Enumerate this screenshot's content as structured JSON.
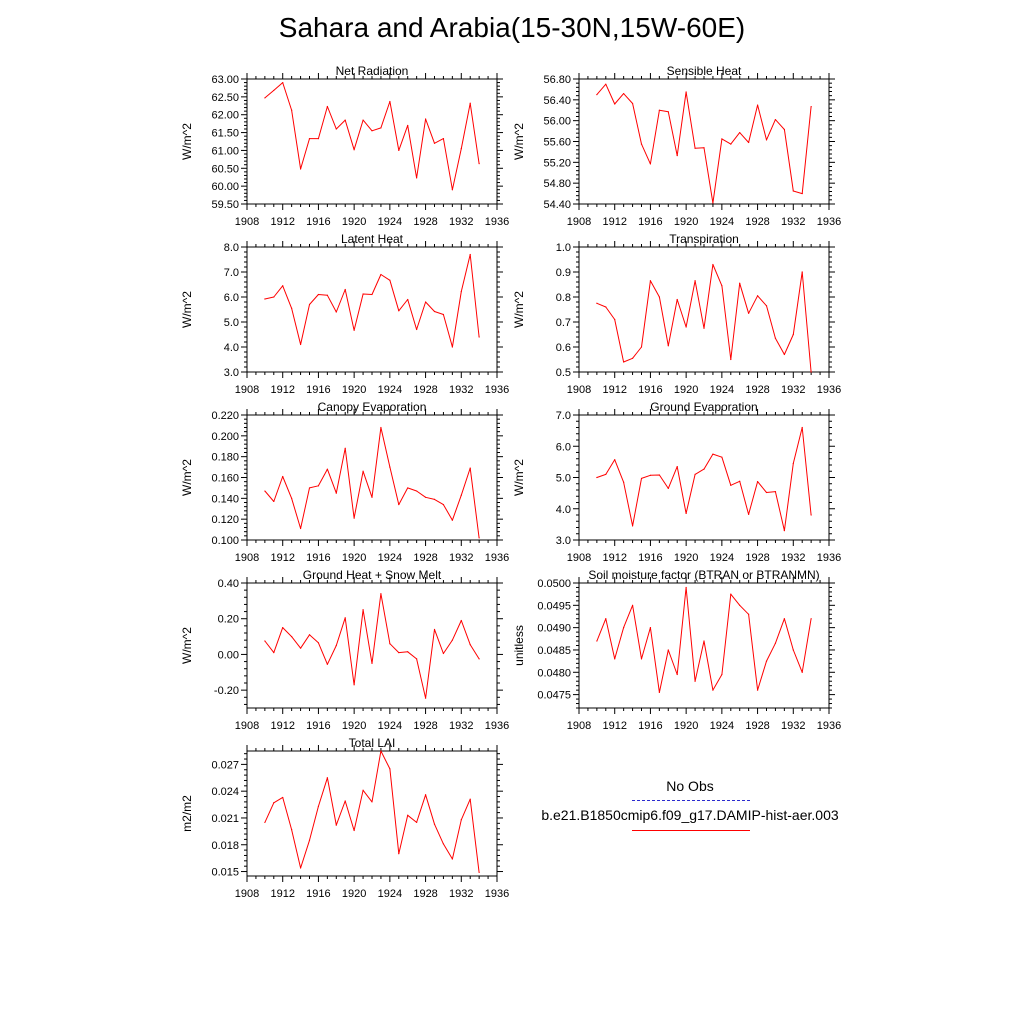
{
  "title": "Sahara and Arabia(15-30N,15W-60E)",
  "legend": {
    "obs_label": "No Obs",
    "obs_color": "#2b2bcf",
    "model_label": "b.e21.B1850cmip6.f09_g17.DAMIP-hist-aer.003",
    "model_color": "#ff0000"
  },
  "chart_data": [
    {
      "type": "line",
      "title": "Net Radiation",
      "ylabel": "W/m^2",
      "xlim": [
        1908,
        1936
      ],
      "ylim": [
        59.5,
        63.0
      ],
      "yticks": [
        "59.50",
        "60.00",
        "60.50",
        "61.00",
        "61.50",
        "62.00",
        "62.50",
        "63.00"
      ],
      "xticks": [
        "1908",
        "1912",
        "1916",
        "1920",
        "1924",
        "1928",
        "1932",
        "1936"
      ],
      "x": [
        1910,
        1911,
        1912,
        1913,
        1914,
        1915,
        1916,
        1917,
        1918,
        1919,
        1920,
        1921,
        1922,
        1923,
        1924,
        1925,
        1926,
        1927,
        1928,
        1929,
        1930,
        1931,
        1932,
        1933,
        1934
      ],
      "values": [
        62.47,
        62.68,
        62.9,
        62.13,
        60.48,
        61.33,
        61.33,
        62.23,
        61.6,
        61.85,
        61.02,
        61.85,
        61.55,
        61.63,
        62.37,
        61.0,
        61.7,
        60.23,
        61.88,
        61.2,
        61.33,
        59.9,
        61.05,
        62.32,
        60.63
      ]
    },
    {
      "type": "line",
      "title": "Sensible Heat",
      "ylabel": "W/m^2",
      "xlim": [
        1908,
        1936
      ],
      "ylim": [
        54.4,
        56.8
      ],
      "yticks": [
        "54.40",
        "54.80",
        "55.20",
        "55.60",
        "56.00",
        "56.40",
        "56.80"
      ],
      "xticks": [
        "1908",
        "1912",
        "1916",
        "1920",
        "1924",
        "1928",
        "1932",
        "1936"
      ],
      "x": [
        1910,
        1911,
        1912,
        1913,
        1914,
        1915,
        1916,
        1917,
        1918,
        1919,
        1920,
        1921,
        1922,
        1923,
        1924,
        1925,
        1926,
        1927,
        1928,
        1929,
        1930,
        1931,
        1932,
        1933,
        1934
      ],
      "values": [
        56.5,
        56.7,
        56.32,
        56.52,
        56.33,
        55.55,
        55.17,
        56.2,
        56.17,
        55.33,
        56.55,
        55.47,
        55.48,
        54.42,
        55.65,
        55.55,
        55.77,
        55.58,
        56.3,
        55.63,
        56.02,
        55.83,
        54.65,
        54.6,
        56.27
      ]
    },
    {
      "type": "line",
      "title": "Latent Heat",
      "ylabel": "W/m^2",
      "xlim": [
        1908,
        1936
      ],
      "ylim": [
        3.0,
        8.0
      ],
      "yticks": [
        "3.0",
        "4.0",
        "5.0",
        "6.0",
        "7.0",
        "8.0"
      ],
      "xticks": [
        "1908",
        "1912",
        "1916",
        "1920",
        "1924",
        "1928",
        "1932",
        "1936"
      ],
      "x": [
        1910,
        1911,
        1912,
        1913,
        1914,
        1915,
        1916,
        1917,
        1918,
        1919,
        1920,
        1921,
        1922,
        1923,
        1924,
        1925,
        1926,
        1927,
        1928,
        1929,
        1930,
        1931,
        1932,
        1933,
        1934
      ],
      "values": [
        5.92,
        6.0,
        6.45,
        5.55,
        4.1,
        5.7,
        6.1,
        6.07,
        5.4,
        6.3,
        4.67,
        6.12,
        6.1,
        6.9,
        6.67,
        5.45,
        5.9,
        4.7,
        5.8,
        5.42,
        5.3,
        4.0,
        6.22,
        7.7,
        4.4
      ]
    },
    {
      "type": "line",
      "title": "Transpiration",
      "ylabel": "W/m^2",
      "xlim": [
        1908,
        1936
      ],
      "ylim": [
        0.5,
        1.0
      ],
      "yticks": [
        "0.5",
        "0.6",
        "0.7",
        "0.8",
        "0.9",
        "1.0"
      ],
      "xticks": [
        "1908",
        "1912",
        "1916",
        "1920",
        "1924",
        "1928",
        "1932",
        "1936"
      ],
      "x": [
        1910,
        1911,
        1912,
        1913,
        1914,
        1915,
        1916,
        1917,
        1918,
        1919,
        1920,
        1921,
        1922,
        1923,
        1924,
        1925,
        1926,
        1927,
        1928,
        1929,
        1930,
        1931,
        1932,
        1933,
        1934
      ],
      "values": [
        0.775,
        0.76,
        0.71,
        0.54,
        0.555,
        0.6,
        0.865,
        0.8,
        0.605,
        0.79,
        0.68,
        0.865,
        0.675,
        0.93,
        0.845,
        0.55,
        0.855,
        0.735,
        0.805,
        0.765,
        0.635,
        0.57,
        0.65,
        0.9,
        0.5
      ]
    },
    {
      "type": "line",
      "title": "Canopy Evaporation",
      "ylabel": "W/m^2",
      "xlim": [
        1908,
        1936
      ],
      "ylim": [
        0.1,
        0.22
      ],
      "yticks": [
        "0.100",
        "0.120",
        "0.140",
        "0.160",
        "0.180",
        "0.200",
        "0.220"
      ],
      "xticks": [
        "1908",
        "1912",
        "1916",
        "1920",
        "1924",
        "1928",
        "1932",
        "1936"
      ],
      "x": [
        1910,
        1911,
        1912,
        1913,
        1914,
        1915,
        1916,
        1917,
        1918,
        1919,
        1920,
        1921,
        1922,
        1923,
        1924,
        1925,
        1926,
        1927,
        1928,
        1929,
        1930,
        1931,
        1932,
        1933,
        1934
      ],
      "values": [
        0.147,
        0.137,
        0.161,
        0.14,
        0.111,
        0.15,
        0.152,
        0.168,
        0.145,
        0.188,
        0.121,
        0.166,
        0.141,
        0.208,
        0.17,
        0.134,
        0.15,
        0.147,
        0.141,
        0.139,
        0.134,
        0.119,
        0.143,
        0.169,
        0.102
      ]
    },
    {
      "type": "line",
      "title": "Ground Evaporation",
      "ylabel": "W/m^2",
      "xlim": [
        1908,
        1936
      ],
      "ylim": [
        3.0,
        7.0
      ],
      "yticks": [
        "3.0",
        "4.0",
        "5.0",
        "6.0",
        "7.0"
      ],
      "xticks": [
        "1908",
        "1912",
        "1916",
        "1920",
        "1924",
        "1928",
        "1932",
        "1936"
      ],
      "x": [
        1910,
        1911,
        1912,
        1913,
        1914,
        1915,
        1916,
        1917,
        1918,
        1919,
        1920,
        1921,
        1922,
        1923,
        1924,
        1925,
        1926,
        1927,
        1928,
        1929,
        1930,
        1931,
        1932,
        1933,
        1934
      ],
      "values": [
        5.0,
        5.1,
        5.57,
        4.85,
        3.45,
        4.97,
        5.07,
        5.08,
        4.65,
        5.35,
        3.85,
        5.1,
        5.27,
        5.75,
        5.65,
        4.75,
        4.88,
        3.82,
        4.87,
        4.52,
        4.55,
        3.3,
        5.45,
        6.6,
        3.8
      ]
    },
    {
      "type": "line",
      "title": "Ground Heat + Snow Melt",
      "ylabel": "W/m^2",
      "xlim": [
        1908,
        1936
      ],
      "ylim": [
        -0.3,
        0.4
      ],
      "yticks": [
        "-0.20",
        "0.00",
        "0.20",
        "0.40"
      ],
      "xticks": [
        "1908",
        "1912",
        "1916",
        "1920",
        "1924",
        "1928",
        "1932",
        "1936"
      ],
      "x": [
        1910,
        1911,
        1912,
        1913,
        1914,
        1915,
        1916,
        1917,
        1918,
        1919,
        1920,
        1921,
        1922,
        1923,
        1924,
        1925,
        1926,
        1927,
        1928,
        1929,
        1930,
        1931,
        1932,
        1933,
        1934
      ],
      "values": [
        0.075,
        0.01,
        0.15,
        0.1,
        0.035,
        0.11,
        0.065,
        -0.055,
        0.05,
        0.205,
        -0.17,
        0.25,
        -0.05,
        0.34,
        0.06,
        0.01,
        0.015,
        -0.025,
        -0.245,
        0.14,
        0.005,
        0.08,
        0.19,
        0.055,
        -0.025
      ]
    },
    {
      "type": "line",
      "title": "Soil moisture factor (BTRAN or BTRANMN)",
      "ylabel": "unitless",
      "xlim": [
        1908,
        1936
      ],
      "ylim": [
        0.0472,
        0.05
      ],
      "yticks": [
        "0.0475",
        "0.0480",
        "0.0485",
        "0.0490",
        "0.0495",
        "0.0500"
      ],
      "xticks": [
        "1908",
        "1912",
        "1916",
        "1920",
        "1924",
        "1928",
        "1932",
        "1936"
      ],
      "x": [
        1910,
        1911,
        1912,
        1913,
        1914,
        1915,
        1916,
        1917,
        1918,
        1919,
        1920,
        1921,
        1922,
        1923,
        1924,
        1925,
        1926,
        1927,
        1928,
        1929,
        1930,
        1931,
        1932,
        1933,
        1934
      ],
      "values": [
        0.0487,
        0.0492,
        0.0483,
        0.049,
        0.0495,
        0.0483,
        0.049,
        0.04755,
        0.0485,
        0.04795,
        0.0499,
        0.0478,
        0.0487,
        0.0476,
        0.04795,
        0.04975,
        0.0495,
        0.0493,
        0.0476,
        0.04825,
        0.04865,
        0.0492,
        0.0485,
        0.048,
        0.0492
      ]
    },
    {
      "type": "line",
      "title": "Total LAI",
      "ylabel": "m2/m2",
      "xlim": [
        1908,
        1936
      ],
      "ylim": [
        0.0145,
        0.0285
      ],
      "yticks": [
        "0.015",
        "0.018",
        "0.021",
        "0.024",
        "0.027"
      ],
      "xticks": [
        "1908",
        "1912",
        "1916",
        "1920",
        "1924",
        "1928",
        "1932",
        "1936"
      ],
      "x": [
        1910,
        1911,
        1912,
        1913,
        1914,
        1915,
        1916,
        1917,
        1918,
        1919,
        1920,
        1921,
        1922,
        1923,
        1924,
        1925,
        1926,
        1927,
        1928,
        1929,
        1930,
        1931,
        1932,
        1933,
        1934
      ],
      "values": [
        0.0205,
        0.0227,
        0.0233,
        0.0197,
        0.0154,
        0.0185,
        0.0223,
        0.0255,
        0.0202,
        0.0229,
        0.0196,
        0.0241,
        0.0228,
        0.0285,
        0.0265,
        0.017,
        0.0213,
        0.0205,
        0.0236,
        0.0203,
        0.0181,
        0.0164,
        0.0208,
        0.0231,
        0.0149
      ]
    }
  ]
}
